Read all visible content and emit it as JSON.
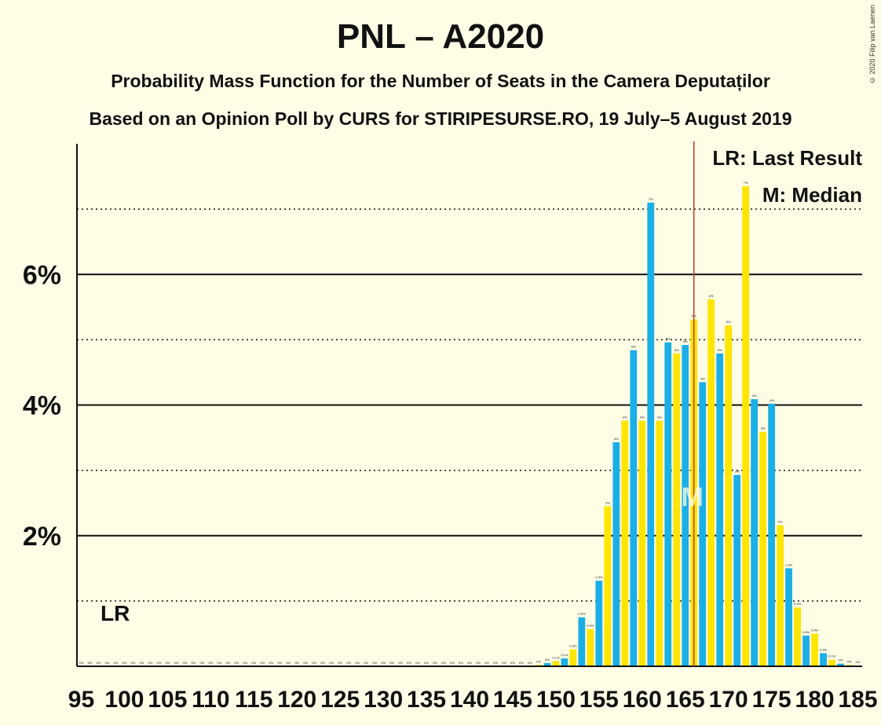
{
  "title": "PNL – A2020",
  "subtitle": "Probability Mass Function for the Number of Seats in the Camera Deputaților",
  "source": "Based on an Opinion Poll by CURS for STIRIPESURSE.RO, 19 July–5 August 2019",
  "copyright": "© 2020 Filip van Laenen",
  "legend": {
    "lr": "LR: Last Result",
    "median": "M: Median"
  },
  "lr_marker": "LR",
  "median_marker": "M",
  "colors": {
    "blue": "#1AAFE6",
    "yellow": "#FFE500",
    "last_result_line": "#C0392B",
    "text": "#111111"
  },
  "chart_data": {
    "type": "bar",
    "x_start": 95,
    "x_end": 185,
    "xticks": [
      95,
      100,
      105,
      110,
      115,
      120,
      125,
      130,
      135,
      140,
      145,
      150,
      155,
      160,
      165,
      170,
      175,
      180,
      185
    ],
    "ylim": [
      0,
      8
    ],
    "yticks_major": [
      2,
      4,
      6
    ],
    "ytick_labels": [
      "2%",
      "4%",
      "6%"
    ],
    "yticks_minor": [
      1,
      3,
      5,
      7
    ],
    "last_result_seat": 98,
    "median_seat": 166,
    "majority_line_seat": 166,
    "values": [
      0,
      0,
      0,
      0,
      0,
      0,
      0,
      0,
      0,
      0,
      0,
      0,
      0,
      0,
      0,
      0,
      0,
      0,
      0,
      0,
      0,
      0,
      0,
      0,
      0,
      0,
      0,
      0,
      0,
      0,
      0,
      0,
      0,
      0,
      0,
      0,
      0,
      0,
      0,
      0,
      0,
      0,
      0,
      0,
      0,
      0,
      0,
      0,
      0,
      0,
      0,
      0,
      0,
      0.02,
      0.05,
      0.08,
      0.12,
      0.26,
      0.75,
      0.57,
      1.31,
      2.45,
      3.43,
      3.76,
      4.84,
      3.76,
      7.1,
      3.76,
      4.96,
      4.79,
      4.92,
      5.31,
      4.35,
      5.62,
      4.79,
      5.22,
      2.93,
      7.35,
      4.09,
      3.59,
      4.02,
      2.16,
      1.5,
      0.9,
      0.47,
      0.5,
      0.2,
      0.1,
      0.04,
      0.02,
      0.01
    ],
    "labels": [
      "0%",
      "0%",
      "0%",
      "0%",
      "0%",
      "0%",
      "0%",
      "0%",
      "0%",
      "0%",
      "0%",
      "0%",
      "0%",
      "0%",
      "0%",
      "0%",
      "0%",
      "0%",
      "0%",
      "0%",
      "0%",
      "0%",
      "0%",
      "0%",
      "0%",
      "0%",
      "0%",
      "0%",
      "0%",
      "0%",
      "0%",
      "0%",
      "0%",
      "0%",
      "0%",
      "0%",
      "0%",
      "0%",
      "0%",
      "0%",
      "0%",
      "0%",
      "0%",
      "0%",
      "0%",
      "0%",
      "0%",
      "0%",
      "0%",
      "0%",
      "0%",
      "0%",
      "0%",
      "0%",
      "0%",
      "0.1%",
      "0.1%",
      "0.3%",
      "0.8%",
      "0.6%",
      "1.3%",
      "2%",
      "3%",
      "4%",
      "5%",
      "4%",
      "7%",
      "4%",
      "5%",
      "5%",
      "5%",
      "5%",
      "4%",
      "6%",
      "5%",
      "5%",
      "3%",
      "7%",
      "4%",
      "4%",
      "4%",
      "2%",
      "1.5%",
      "0.9%",
      "0.5%",
      "0.5%",
      "0.2%",
      "0.1%",
      "0%",
      "0%",
      "0%"
    ]
  }
}
